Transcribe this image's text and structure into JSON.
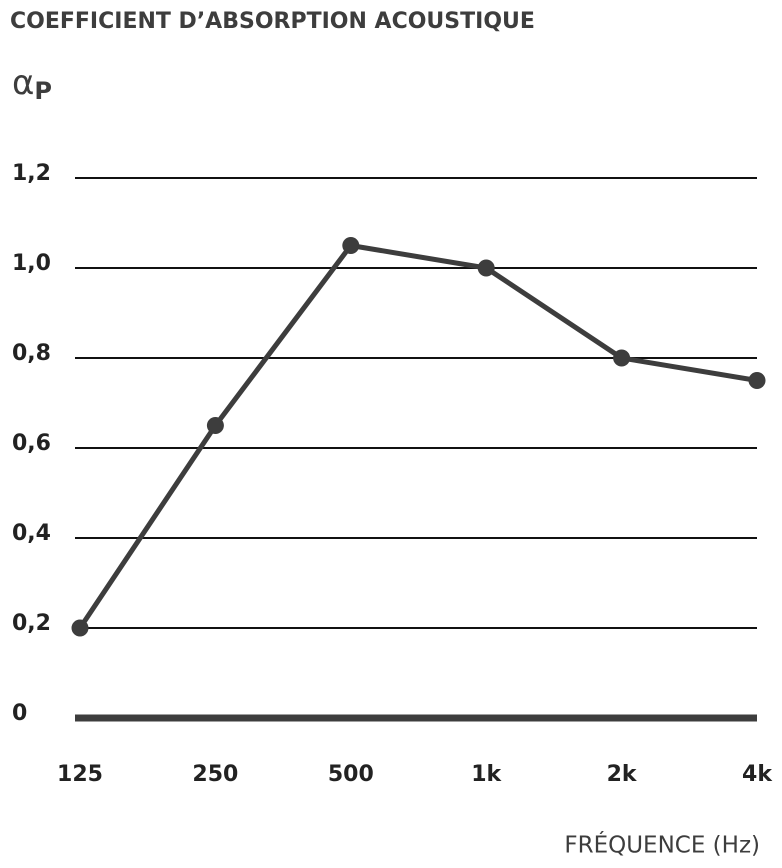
{
  "chart_data": {
    "type": "line",
    "title": "COEFFICIENT D’ABSORPTION ACOUSTIQUE",
    "y_label": {
      "symbol": "α",
      "subscript": "P"
    },
    "x_label": "FRÉQUENCE (Hz)",
    "categories": [
      "125",
      "250",
      "500",
      "1k",
      "2k",
      "4k"
    ],
    "values": [
      0.2,
      0.65,
      1.05,
      1.0,
      0.8,
      0.75
    ],
    "color": "#3d3d3d",
    "ylim": [
      0,
      1.2
    ],
    "yticks": [
      0,
      {
        "value": 0.2,
        "label": "0,2"
      },
      {
        "value": 0.4,
        "label": "0,4"
      },
      {
        "value": 0.6,
        "label": "0,6"
      },
      {
        "value": 0.8,
        "label": "0,8"
      },
      {
        "value": 1.0,
        "label": "1,0"
      },
      {
        "value": 1.2,
        "label": "1,2"
      }
    ],
    "grid": true
  }
}
